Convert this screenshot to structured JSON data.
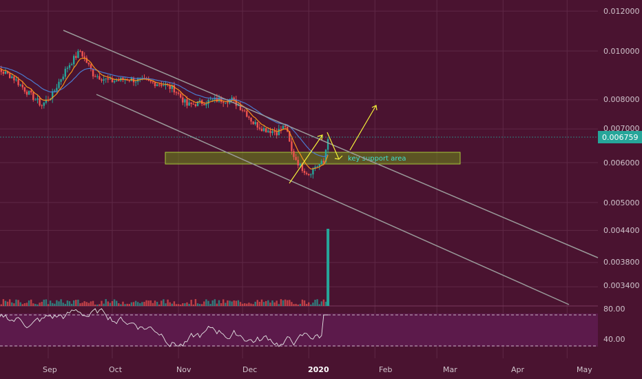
{
  "colors": {
    "background": "#4a1330",
    "grid": "#5f2846",
    "up_candle": "#26a69a",
    "down_candle": "#ef5350",
    "channel_line": "#8a8a8a",
    "ema_fast": "#f7931a",
    "ema_slow": "#4a7bd0",
    "rsi_line": "#e6e6e6",
    "rsi_band": "#5c1a4b",
    "support_zone": "#6b8a1a",
    "arrows": "#f5f23a",
    "last_price_badge": "#26a69a",
    "annotation_text": "#3fe0d0"
  },
  "price_axis": {
    "labels": [
      "0.012000",
      "0.010000",
      "0.008000",
      "0.007000",
      "0.006000",
      "0.005000",
      "0.004400",
      "0.003800",
      "0.003400"
    ],
    "last_price": "0.006759"
  },
  "rsi_axis": {
    "labels": [
      "80.00",
      "40.00"
    ]
  },
  "time_axis": {
    "labels": [
      "Sep",
      "Oct",
      "Nov",
      "Dec",
      "2020",
      "Feb",
      "Mar",
      "Apr",
      "May"
    ],
    "bold_label": "2020"
  },
  "annotation": {
    "text": "key support area"
  },
  "chart_data": {
    "type": "candlestick",
    "scale": "log",
    "y_ticks": [
      0.012,
      0.01,
      0.008,
      0.007,
      0.006,
      0.005,
      0.0044,
      0.0038,
      0.0034
    ],
    "last_price": 0.006759,
    "support_zone": [
      0.00598,
      0.00632
    ],
    "channel": {
      "upper": [
        {
          "date": "2019-08-10",
          "price": 0.0112
        },
        {
          "date": "2020-05-10",
          "price": 0.00395
        }
      ],
      "lower": [
        {
          "date": "2019-08-28",
          "price": 0.0076
        },
        {
          "date": "2020-04-28",
          "price": 0.00295
        }
      ]
    },
    "rsi_levels": [
      70,
      30
    ],
    "series_close": [
      [
        "2019-08-01",
        0.0094
      ],
      [
        "2019-08-08",
        0.0092
      ],
      [
        "2019-08-15",
        0.0089
      ],
      [
        "2019-08-22",
        0.0083
      ],
      [
        "2019-08-29",
        0.0078
      ],
      [
        "2019-09-03",
        0.0082
      ],
      [
        "2019-09-10",
        0.0093
      ],
      [
        "2019-09-16",
        0.01
      ],
      [
        "2019-09-22",
        0.009
      ],
      [
        "2019-09-30",
        0.0087
      ],
      [
        "2019-10-08",
        0.0088
      ],
      [
        "2019-10-16",
        0.0087
      ],
      [
        "2019-10-24",
        0.0086
      ],
      [
        "2019-10-30",
        0.0084
      ],
      [
        "2019-11-05",
        0.0078
      ],
      [
        "2019-11-12",
        0.0079
      ],
      [
        "2019-11-19",
        0.008
      ],
      [
        "2019-11-26",
        0.008
      ],
      [
        "2019-12-02",
        0.0076
      ],
      [
        "2019-12-06",
        0.0072
      ],
      [
        "2019-12-11",
        0.007
      ],
      [
        "2019-12-17",
        0.0069
      ],
      [
        "2019-12-21",
        0.0071
      ],
      [
        "2019-12-24",
        0.0063
      ],
      [
        "2019-12-28",
        0.0059
      ],
      [
        "2020-01-01",
        0.0057
      ],
      [
        "2020-01-04",
        0.0059
      ],
      [
        "2020-01-08",
        0.006
      ],
      [
        "2020-01-10",
        0.006759
      ]
    ],
    "volume_spike": {
      "date": "2020-01-10",
      "value": 0.00438
    }
  }
}
